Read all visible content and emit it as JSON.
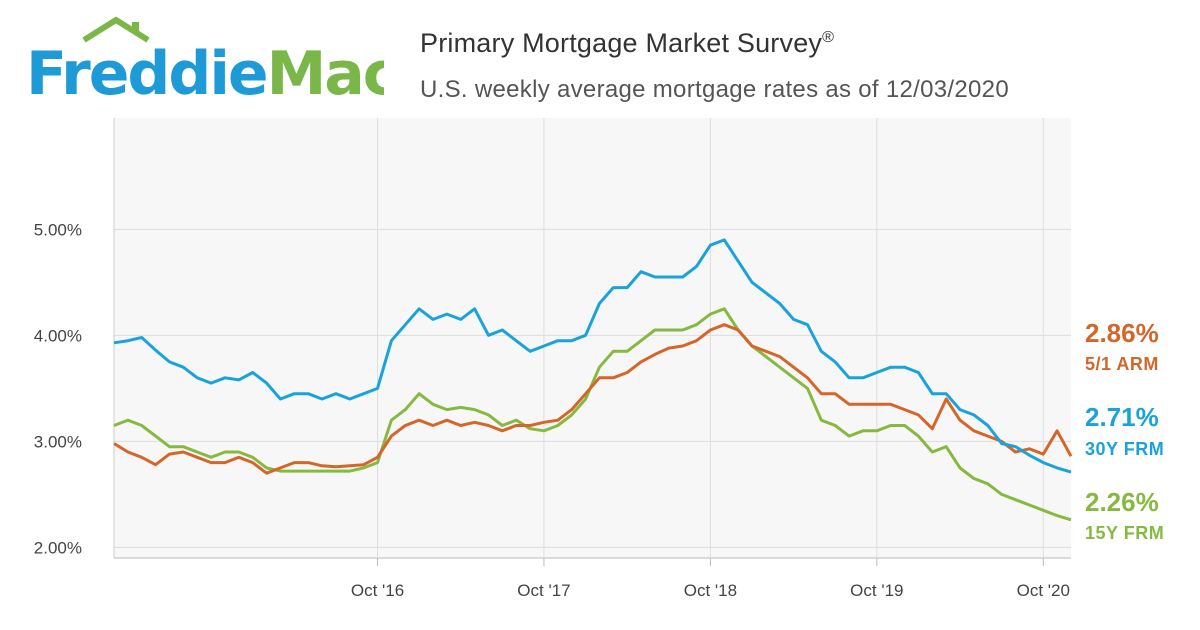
{
  "header": {
    "logo_text": "FreddieMac",
    "title": "Primary Mortgage Market Survey",
    "title_mark": "®",
    "subtitle": "U.S. weekly average mortgage rates as of 12/03/2020"
  },
  "colors": {
    "arm": "#D4662A",
    "frm30": "#1AA3DB",
    "frm15": "#86B940",
    "logo_blue": "#1E9AD6",
    "logo_green": "#7AB648",
    "plot_bg": "#F7F7F7",
    "grid": "#DDDDDD"
  },
  "end_labels": [
    {
      "value": "2.86%",
      "label": "5/1 ARM",
      "color": "#D4662A"
    },
    {
      "value": "2.71%",
      "label": "30Y FRM",
      "color": "#1AA3DB"
    },
    {
      "value": "2.26%",
      "label": "15Y FRM",
      "color": "#86B940"
    }
  ],
  "chart_data": {
    "type": "line",
    "title": "Primary Mortgage Market Survey",
    "subtitle": "U.S. weekly average mortgage rates as of 12/03/2020",
    "x_range": [
      "2015-03",
      "2020-12"
    ],
    "ylim": [
      1.9,
      6.05
    ],
    "y_ticks": [
      "2.00%",
      "3.00%",
      "4.00%",
      "5.00%"
    ],
    "y_tick_values": [
      2,
      3,
      4,
      5
    ],
    "x_ticks": [
      "Oct '16",
      "Oct '17",
      "Oct '18",
      "Oct '19",
      "Oct '20"
    ],
    "x_tick_values": [
      "2016-10",
      "2017-10",
      "2018-10",
      "2019-10",
      "2020-10"
    ],
    "grid": true,
    "series": [
      {
        "name": "30Y FRM",
        "end_value": 2.71,
        "points": [
          [
            "2015-03",
            3.93
          ],
          [
            "2015-04",
            3.95
          ],
          [
            "2015-05",
            3.98
          ],
          [
            "2015-06",
            3.86
          ],
          [
            "2015-07",
            3.75
          ],
          [
            "2015-08",
            3.7
          ],
          [
            "2015-09",
            3.6
          ],
          [
            "2015-10",
            3.55
          ],
          [
            "2015-11",
            3.6
          ],
          [
            "2015-12",
            3.58
          ],
          [
            "2016-01",
            3.65
          ],
          [
            "2016-02",
            3.55
          ],
          [
            "2016-03",
            3.4
          ],
          [
            "2016-04",
            3.45
          ],
          [
            "2016-05",
            3.45
          ],
          [
            "2016-06",
            3.4
          ],
          [
            "2016-07",
            3.45
          ],
          [
            "2016-08",
            3.4
          ],
          [
            "2016-09",
            3.45
          ],
          [
            "2016-10",
            3.5
          ],
          [
            "2016-11",
            3.95
          ],
          [
            "2016-12",
            4.1
          ],
          [
            "2017-01",
            4.25
          ],
          [
            "2017-02",
            4.15
          ],
          [
            "2017-03",
            4.2
          ],
          [
            "2017-04",
            4.15
          ],
          [
            "2017-05",
            4.25
          ],
          [
            "2017-06",
            4
          ],
          [
            "2017-07",
            4.05
          ],
          [
            "2017-08",
            3.95
          ],
          [
            "2017-09",
            3.85
          ],
          [
            "2017-10",
            3.9
          ],
          [
            "2017-11",
            3.95
          ],
          [
            "2017-12",
            3.95
          ],
          [
            "2018-01",
            4
          ],
          [
            "2018-02",
            4.3
          ],
          [
            "2018-03",
            4.45
          ],
          [
            "2018-04",
            4.45
          ],
          [
            "2018-05",
            4.6
          ],
          [
            "2018-06",
            4.55
          ],
          [
            "2018-07",
            4.55
          ],
          [
            "2018-08",
            4.55
          ],
          [
            "2018-09",
            4.65
          ],
          [
            "2018-10",
            4.85
          ],
          [
            "2018-11",
            4.9
          ],
          [
            "2018-12",
            4.7
          ],
          [
            "2019-01",
            4.5
          ],
          [
            "2019-02",
            4.4
          ],
          [
            "2019-03",
            4.3
          ],
          [
            "2019-04",
            4.15
          ],
          [
            "2019-05",
            4.1
          ],
          [
            "2019-06",
            3.85
          ],
          [
            "2019-07",
            3.75
          ],
          [
            "2019-08",
            3.6
          ],
          [
            "2019-09",
            3.6
          ],
          [
            "2019-10",
            3.65
          ],
          [
            "2019-11",
            3.7
          ],
          [
            "2019-12",
            3.7
          ],
          [
            "2020-01",
            3.65
          ],
          [
            "2020-02",
            3.45
          ],
          [
            "2020-03",
            3.45
          ],
          [
            "2020-04",
            3.3
          ],
          [
            "2020-05",
            3.25
          ],
          [
            "2020-06",
            3.15
          ],
          [
            "2020-07",
            2.98
          ],
          [
            "2020-08",
            2.95
          ],
          [
            "2020-09",
            2.87
          ],
          [
            "2020-10",
            2.8
          ],
          [
            "2020-11",
            2.75
          ],
          [
            "2020-12",
            2.71
          ]
        ]
      },
      {
        "name": "5/1 ARM",
        "end_value": 2.86,
        "points": [
          [
            "2015-03",
            2.98
          ],
          [
            "2015-04",
            2.9
          ],
          [
            "2015-05",
            2.85
          ],
          [
            "2015-06",
            2.78
          ],
          [
            "2015-07",
            2.88
          ],
          [
            "2015-08",
            2.9
          ],
          [
            "2015-09",
            2.85
          ],
          [
            "2015-10",
            2.8
          ],
          [
            "2015-11",
            2.8
          ],
          [
            "2015-12",
            2.85
          ],
          [
            "2016-01",
            2.8
          ],
          [
            "2016-02",
            2.7
          ],
          [
            "2016-03",
            2.75
          ],
          [
            "2016-04",
            2.8
          ],
          [
            "2016-05",
            2.8
          ],
          [
            "2016-06",
            2.77
          ],
          [
            "2016-07",
            2.76
          ],
          [
            "2016-08",
            2.77
          ],
          [
            "2016-09",
            2.78
          ],
          [
            "2016-10",
            2.85
          ],
          [
            "2016-11",
            3.05
          ],
          [
            "2016-12",
            3.15
          ],
          [
            "2017-01",
            3.2
          ],
          [
            "2017-02",
            3.15
          ],
          [
            "2017-03",
            3.2
          ],
          [
            "2017-04",
            3.15
          ],
          [
            "2017-05",
            3.18
          ],
          [
            "2017-06",
            3.15
          ],
          [
            "2017-07",
            3.1
          ],
          [
            "2017-08",
            3.15
          ],
          [
            "2017-09",
            3.15
          ],
          [
            "2017-10",
            3.18
          ],
          [
            "2017-11",
            3.2
          ],
          [
            "2017-12",
            3.3
          ],
          [
            "2018-01",
            3.45
          ],
          [
            "2018-02",
            3.6
          ],
          [
            "2018-03",
            3.6
          ],
          [
            "2018-04",
            3.65
          ],
          [
            "2018-05",
            3.75
          ],
          [
            "2018-06",
            3.82
          ],
          [
            "2018-07",
            3.88
          ],
          [
            "2018-08",
            3.9
          ],
          [
            "2018-09",
            3.95
          ],
          [
            "2018-10",
            4.05
          ],
          [
            "2018-11",
            4.1
          ],
          [
            "2018-12",
            4.05
          ],
          [
            "2019-01",
            3.9
          ],
          [
            "2019-02",
            3.85
          ],
          [
            "2019-03",
            3.8
          ],
          [
            "2019-04",
            3.7
          ],
          [
            "2019-05",
            3.6
          ],
          [
            "2019-06",
            3.45
          ],
          [
            "2019-07",
            3.45
          ],
          [
            "2019-08",
            3.35
          ],
          [
            "2019-09",
            3.35
          ],
          [
            "2019-10",
            3.35
          ],
          [
            "2019-11",
            3.35
          ],
          [
            "2019-12",
            3.3
          ],
          [
            "2020-01",
            3.25
          ],
          [
            "2020-02",
            3.12
          ],
          [
            "2020-03",
            3.4
          ],
          [
            "2020-04",
            3.2
          ],
          [
            "2020-05",
            3.1
          ],
          [
            "2020-06",
            3.05
          ],
          [
            "2020-07",
            3
          ],
          [
            "2020-08",
            2.9
          ],
          [
            "2020-09",
            2.93
          ],
          [
            "2020-10",
            2.88
          ],
          [
            "2020-11",
            3.1
          ],
          [
            "2020-12",
            2.86
          ]
        ]
      },
      {
        "name": "15Y FRM",
        "end_value": 2.26,
        "points": [
          [
            "2015-03",
            3.15
          ],
          [
            "2015-04",
            3.2
          ],
          [
            "2015-05",
            3.15
          ],
          [
            "2015-06",
            3.05
          ],
          [
            "2015-07",
            2.95
          ],
          [
            "2015-08",
            2.95
          ],
          [
            "2015-09",
            2.9
          ],
          [
            "2015-10",
            2.85
          ],
          [
            "2015-11",
            2.9
          ],
          [
            "2015-12",
            2.9
          ],
          [
            "2016-01",
            2.85
          ],
          [
            "2016-02",
            2.75
          ],
          [
            "2016-03",
            2.72
          ],
          [
            "2016-04",
            2.72
          ],
          [
            "2016-05",
            2.72
          ],
          [
            "2016-06",
            2.72
          ],
          [
            "2016-07",
            2.72
          ],
          [
            "2016-08",
            2.72
          ],
          [
            "2016-09",
            2.75
          ],
          [
            "2016-10",
            2.8
          ],
          [
            "2016-11",
            3.2
          ],
          [
            "2016-12",
            3.3
          ],
          [
            "2017-01",
            3.45
          ],
          [
            "2017-02",
            3.35
          ],
          [
            "2017-03",
            3.3
          ],
          [
            "2017-04",
            3.32
          ],
          [
            "2017-05",
            3.3
          ],
          [
            "2017-06",
            3.25
          ],
          [
            "2017-07",
            3.15
          ],
          [
            "2017-08",
            3.2
          ],
          [
            "2017-09",
            3.12
          ],
          [
            "2017-10",
            3.1
          ],
          [
            "2017-11",
            3.15
          ],
          [
            "2017-12",
            3.25
          ],
          [
            "2018-01",
            3.4
          ],
          [
            "2018-02",
            3.7
          ],
          [
            "2018-03",
            3.85
          ],
          [
            "2018-04",
            3.85
          ],
          [
            "2018-05",
            3.95
          ],
          [
            "2018-06",
            4.05
          ],
          [
            "2018-07",
            4.05
          ],
          [
            "2018-08",
            4.05
          ],
          [
            "2018-09",
            4.1
          ],
          [
            "2018-10",
            4.2
          ],
          [
            "2018-11",
            4.25
          ],
          [
            "2018-12",
            4.05
          ],
          [
            "2019-01",
            3.9
          ],
          [
            "2019-02",
            3.8
          ],
          [
            "2019-03",
            3.7
          ],
          [
            "2019-04",
            3.6
          ],
          [
            "2019-05",
            3.5
          ],
          [
            "2019-06",
            3.2
          ],
          [
            "2019-07",
            3.15
          ],
          [
            "2019-08",
            3.05
          ],
          [
            "2019-09",
            3.1
          ],
          [
            "2019-10",
            3.1
          ],
          [
            "2019-11",
            3.15
          ],
          [
            "2019-12",
            3.15
          ],
          [
            "2020-01",
            3.05
          ],
          [
            "2020-02",
            2.9
          ],
          [
            "2020-03",
            2.95
          ],
          [
            "2020-04",
            2.75
          ],
          [
            "2020-05",
            2.65
          ],
          [
            "2020-06",
            2.6
          ],
          [
            "2020-07",
            2.5
          ],
          [
            "2020-08",
            2.45
          ],
          [
            "2020-09",
            2.4
          ],
          [
            "2020-10",
            2.35
          ],
          [
            "2020-11",
            2.3
          ],
          [
            "2020-12",
            2.26
          ]
        ]
      }
    ]
  }
}
